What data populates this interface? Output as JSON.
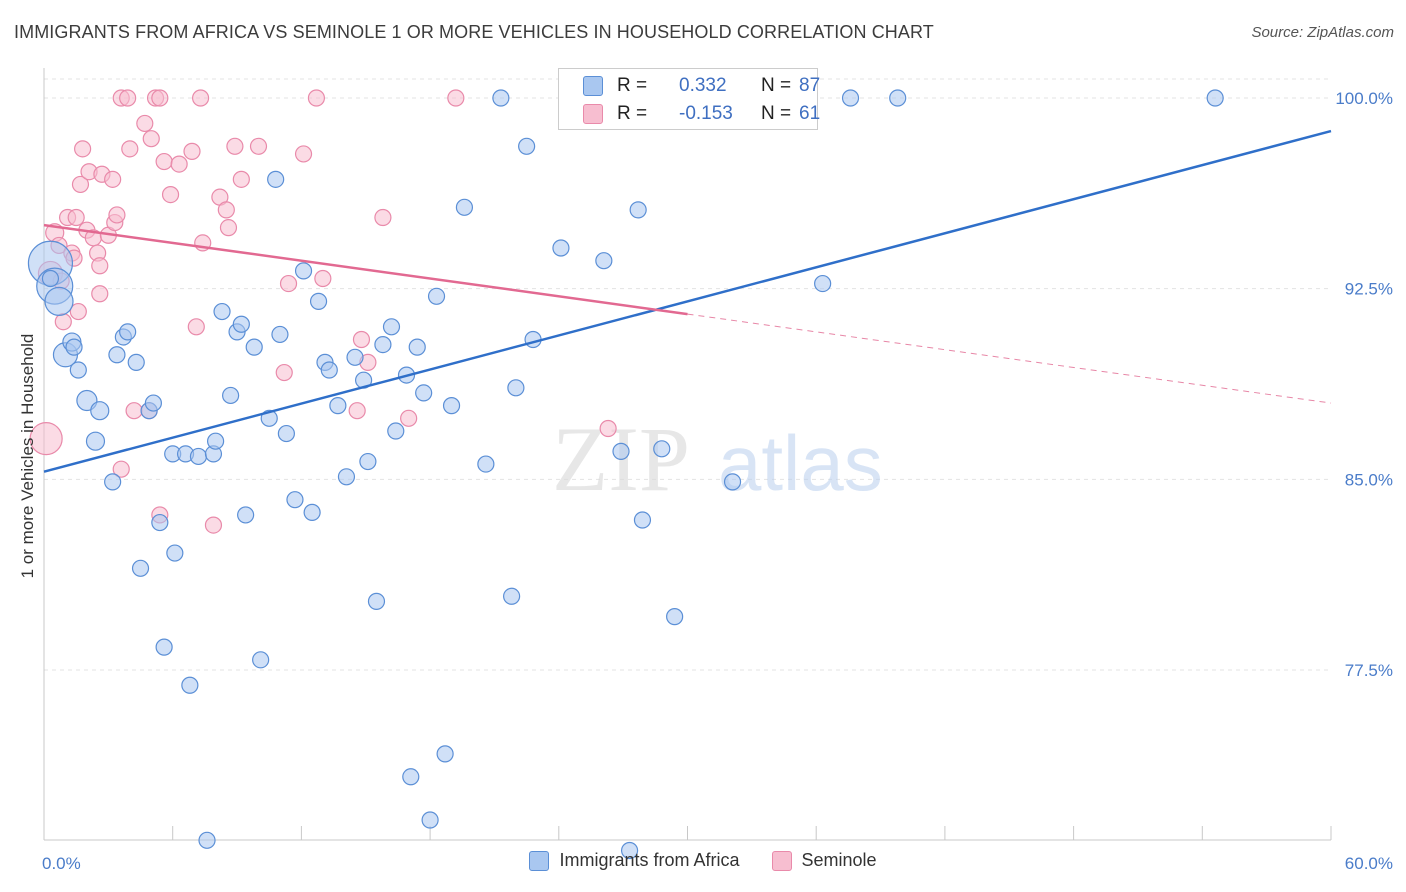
{
  "title": "IMMIGRANTS FROM AFRICA VS SEMINOLE 1 OR MORE VEHICLES IN HOUSEHOLD CORRELATION CHART",
  "source": "Source: ZipAtlas.com",
  "watermark": {
    "zip": "ZIP",
    "atlas": "atlas"
  },
  "colors": {
    "blue_fill": "#a9c7f0",
    "blue_stroke": "#5b8fd6",
    "blue_line": "#2f6fc9",
    "pink_fill": "#f7bed0",
    "pink_stroke": "#e98aaa",
    "pink_line": "#e26991",
    "tick_text": "#4a7cc9",
    "grid": "#e3e3e3"
  },
  "stats": [
    {
      "r_label": "R =",
      "r_value": "0.332",
      "n_label": "N =",
      "n_value": "87",
      "color": "blue"
    },
    {
      "r_label": "R =",
      "r_value": "-0.153",
      "n_label": "N =",
      "n_value": "61",
      "color": "pink"
    }
  ],
  "chart_data": {
    "type": "scatter",
    "title": "IMMIGRANTS FROM AFRICA VS SEMINOLE 1 OR MORE VEHICLES IN HOUSEHOLD CORRELATION CHART",
    "xlabel": "",
    "ylabel": "1 or more Vehicles in Household",
    "xlim": [
      0,
      60
    ],
    "ylim": [
      70.5,
      100.8
    ],
    "x_tick_labels": [
      "0.0%",
      "60.0%"
    ],
    "y_ticks": [
      77.5,
      85.0,
      92.5,
      100.0
    ],
    "y_tick_labels": [
      "77.5%",
      "85.0%",
      "92.5%",
      "100.0%"
    ],
    "grid": true,
    "legend_position": "bottom",
    "series": [
      {
        "name": "Immigrants from Africa",
        "color": "blue",
        "trend": {
          "x": [
            0,
            60
          ],
          "y": [
            85.3,
            98.7
          ],
          "dashed_from": null
        },
        "points": [
          [
            0.3,
            93.5,
            22
          ],
          [
            0.5,
            92.6,
            18
          ],
          [
            0.7,
            92.0,
            14
          ],
          [
            1.0,
            89.9,
            12
          ],
          [
            1.3,
            90.4,
            9
          ],
          [
            1.4,
            90.2,
            8
          ],
          [
            1.6,
            89.3,
            8
          ],
          [
            2.0,
            88.1,
            10
          ],
          [
            2.4,
            86.5,
            9
          ],
          [
            2.6,
            87.7,
            9
          ],
          [
            3.2,
            84.9,
            8
          ],
          [
            3.4,
            89.9,
            8
          ],
          [
            3.7,
            90.6,
            8
          ],
          [
            3.9,
            90.8,
            8
          ],
          [
            4.3,
            89.6,
            8
          ],
          [
            4.5,
            81.5,
            8
          ],
          [
            4.9,
            87.7,
            8
          ],
          [
            5.1,
            88.0,
            8
          ],
          [
            5.4,
            83.3,
            8
          ],
          [
            5.6,
            78.4,
            8
          ],
          [
            6.0,
            86.0,
            8
          ],
          [
            6.1,
            82.1,
            8
          ],
          [
            6.6,
            86.0,
            8
          ],
          [
            6.8,
            76.9,
            8
          ],
          [
            7.2,
            85.9,
            8
          ],
          [
            7.6,
            70.8,
            8
          ],
          [
            7.9,
            86.0,
            8
          ],
          [
            8.0,
            86.5,
            8
          ],
          [
            8.3,
            91.6,
            8
          ],
          [
            8.7,
            88.3,
            8
          ],
          [
            9.0,
            90.8,
            8
          ],
          [
            9.2,
            91.1,
            8
          ],
          [
            9.4,
            83.6,
            8
          ],
          [
            9.8,
            90.2,
            8
          ],
          [
            10.1,
            77.9,
            8
          ],
          [
            10.5,
            87.4,
            8
          ],
          [
            10.8,
            96.8,
            8
          ],
          [
            11.0,
            90.7,
            8
          ],
          [
            11.3,
            86.8,
            8
          ],
          [
            11.7,
            84.2,
            8
          ],
          [
            12.1,
            93.2,
            8
          ],
          [
            12.5,
            83.7,
            8
          ],
          [
            12.8,
            92.0,
            8
          ],
          [
            13.1,
            89.6,
            8
          ],
          [
            13.3,
            89.3,
            8
          ],
          [
            13.7,
            87.9,
            8
          ],
          [
            14.1,
            85.1,
            8
          ],
          [
            14.5,
            89.8,
            8
          ],
          [
            14.9,
            88.9,
            8
          ],
          [
            15.1,
            85.7,
            8
          ],
          [
            15.5,
            80.2,
            8
          ],
          [
            15.8,
            90.3,
            8
          ],
          [
            16.2,
            91.0,
            8
          ],
          [
            16.4,
            86.9,
            8
          ],
          [
            16.9,
            89.1,
            8
          ],
          [
            17.1,
            73.3,
            8
          ],
          [
            17.4,
            90.2,
            8
          ],
          [
            17.7,
            88.4,
            8
          ],
          [
            18.0,
            71.6,
            8
          ],
          [
            18.3,
            92.2,
            8
          ],
          [
            18.7,
            74.2,
            8
          ],
          [
            19.0,
            87.9,
            8
          ],
          [
            19.6,
            95.7,
            8
          ],
          [
            20.6,
            85.6,
            8
          ],
          [
            21.3,
            100.0,
            8
          ],
          [
            21.8,
            80.4,
            8
          ],
          [
            22.0,
            88.6,
            8
          ],
          [
            22.5,
            98.1,
            8
          ],
          [
            22.8,
            90.5,
            8
          ],
          [
            24.1,
            94.1,
            8
          ],
          [
            24.4,
            100.0,
            8
          ],
          [
            25.8,
            100.0,
            8
          ],
          [
            26.1,
            93.6,
            8
          ],
          [
            26.9,
            86.1,
            8
          ],
          [
            27.3,
            70.4,
            8
          ],
          [
            27.7,
            95.6,
            8
          ],
          [
            27.9,
            83.4,
            8
          ],
          [
            28.8,
            86.2,
            8
          ],
          [
            29.4,
            79.6,
            8
          ],
          [
            29.4,
            100.0,
            8
          ],
          [
            32.1,
            84.9,
            8
          ],
          [
            33.2,
            100.0,
            8
          ],
          [
            36.3,
            92.7,
            8
          ],
          [
            37.6,
            100.0,
            8
          ],
          [
            39.8,
            100.0,
            8
          ],
          [
            54.6,
            100.0,
            8
          ],
          [
            0.3,
            92.9,
            8
          ]
        ]
      },
      {
        "name": "Seminole",
        "color": "pink",
        "trend": {
          "x": [
            0,
            60
          ],
          "y": [
            95.0,
            88.0
          ],
          "dashed_from": 30
        },
        "points": [
          [
            0.1,
            86.6,
            16
          ],
          [
            0.3,
            93.1,
            12
          ],
          [
            0.5,
            94.7,
            9
          ],
          [
            0.7,
            94.2,
            8
          ],
          [
            0.8,
            92.8,
            8
          ],
          [
            0.9,
            91.2,
            8
          ],
          [
            1.1,
            95.3,
            8
          ],
          [
            1.3,
            93.9,
            8
          ],
          [
            1.4,
            93.7,
            8
          ],
          [
            1.5,
            95.3,
            8
          ],
          [
            1.6,
            91.6,
            8
          ],
          [
            1.7,
            96.6,
            8
          ],
          [
            1.8,
            98.0,
            8
          ],
          [
            2.0,
            94.8,
            8
          ],
          [
            2.1,
            97.1,
            8
          ],
          [
            2.3,
            94.5,
            8
          ],
          [
            2.5,
            93.9,
            8
          ],
          [
            2.6,
            92.3,
            8
          ],
          [
            2.6,
            93.4,
            8
          ],
          [
            2.7,
            97.0,
            8
          ],
          [
            3.0,
            94.6,
            8
          ],
          [
            3.2,
            96.8,
            8
          ],
          [
            3.3,
            95.1,
            8
          ],
          [
            3.4,
            95.4,
            8
          ],
          [
            3.6,
            100.0,
            8
          ],
          [
            3.6,
            85.4,
            8
          ],
          [
            3.9,
            100.0,
            8
          ],
          [
            4.0,
            98.0,
            8
          ],
          [
            4.2,
            87.7,
            8
          ],
          [
            4.7,
            99.0,
            8
          ],
          [
            4.9,
            87.7,
            8
          ],
          [
            5.0,
            98.4,
            8
          ],
          [
            5.2,
            100.0,
            8
          ],
          [
            5.4,
            100.0,
            8
          ],
          [
            5.4,
            83.6,
            8
          ],
          [
            5.6,
            97.5,
            8
          ],
          [
            5.9,
            96.2,
            8
          ],
          [
            6.3,
            97.4,
            8
          ],
          [
            6.9,
            97.9,
            8
          ],
          [
            7.1,
            91.0,
            8
          ],
          [
            7.3,
            100.0,
            8
          ],
          [
            7.4,
            94.3,
            8
          ],
          [
            7.9,
            83.2,
            8
          ],
          [
            8.2,
            96.1,
            8
          ],
          [
            8.5,
            95.6,
            8
          ],
          [
            8.6,
            94.9,
            8
          ],
          [
            8.9,
            98.1,
            8
          ],
          [
            9.2,
            96.8,
            8
          ],
          [
            10.0,
            98.1,
            8
          ],
          [
            11.2,
            89.2,
            8
          ],
          [
            11.4,
            92.7,
            8
          ],
          [
            12.1,
            97.8,
            8
          ],
          [
            12.7,
            100.0,
            8
          ],
          [
            13.0,
            92.9,
            8
          ],
          [
            14.6,
            87.7,
            8
          ],
          [
            14.8,
            90.5,
            8
          ],
          [
            15.1,
            89.6,
            8
          ],
          [
            15.8,
            95.3,
            8
          ],
          [
            17.0,
            87.4,
            8
          ],
          [
            19.2,
            100.0,
            8
          ],
          [
            26.3,
            87.0,
            8
          ]
        ]
      }
    ]
  }
}
